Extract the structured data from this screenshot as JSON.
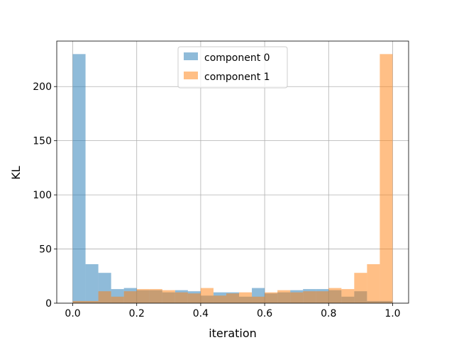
{
  "chart_data": {
    "type": "bar",
    "xlabel": "iteration",
    "ylabel": "KL",
    "xlim": [
      -0.05,
      1.05
    ],
    "ylim": [
      0,
      242
    ],
    "xticks": [
      "0.0",
      "0.2",
      "0.4",
      "0.6",
      "0.8",
      "1.0"
    ],
    "yticks": [
      "0",
      "50",
      "100",
      "150",
      "200"
    ],
    "grid": true,
    "legend_position": "top-center",
    "bin_edges": [
      0.0,
      0.04,
      0.08,
      0.12,
      0.16,
      0.2,
      0.24,
      0.28,
      0.32,
      0.36,
      0.4,
      0.44,
      0.48,
      0.52,
      0.56,
      0.6,
      0.64,
      0.68,
      0.72,
      0.76,
      0.8,
      0.84,
      0.88,
      0.92,
      0.96,
      1.0
    ],
    "series": [
      {
        "name": "component 0",
        "color": "#1f77b4",
        "alpha": 0.5,
        "values": [
          230,
          36,
          28,
          13,
          14,
          12,
          12,
          10,
          12,
          11,
          7,
          10,
          10,
          6,
          14,
          9,
          10,
          12,
          13,
          13,
          12,
          6,
          11,
          2,
          2
        ]
      },
      {
        "name": "component 1",
        "color": "#ff7f0e",
        "alpha": 0.5,
        "values": [
          2,
          2,
          11,
          6,
          11,
          13,
          13,
          12,
          10,
          9,
          14,
          7,
          9,
          10,
          6,
          10,
          12,
          10,
          11,
          11,
          14,
          13,
          28,
          36,
          230
        ]
      }
    ]
  }
}
